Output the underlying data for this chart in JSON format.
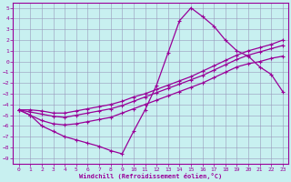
{
  "xlabel": "Windchill (Refroidissement éolien,°C)",
  "bg_color": "#c8f0f0",
  "line_color": "#990099",
  "grid_color": "#9999bb",
  "xlim": [
    -0.5,
    23.5
  ],
  "ylim": [
    -9.5,
    5.5
  ],
  "xticks": [
    0,
    1,
    2,
    3,
    4,
    5,
    6,
    7,
    8,
    9,
    10,
    11,
    12,
    13,
    14,
    15,
    16,
    17,
    18,
    19,
    20,
    21,
    22,
    23
  ],
  "yticks": [
    5,
    4,
    3,
    2,
    1,
    0,
    -1,
    -2,
    -3,
    -4,
    -5,
    -6,
    -7,
    -8,
    -9
  ],
  "line1_x": [
    0,
    1,
    2,
    3,
    4,
    5,
    6,
    7,
    8,
    9,
    10,
    11,
    12,
    13,
    14,
    15,
    16,
    17,
    18,
    19,
    20,
    21,
    22,
    23
  ],
  "line1_y": [
    -4.5,
    -5.0,
    -6.0,
    -6.5,
    -7.0,
    -7.3,
    -7.6,
    -7.9,
    -8.3,
    -8.6,
    -6.5,
    -4.5,
    -2.2,
    0.8,
    3.8,
    5.0,
    4.2,
    3.3,
    2.0,
    1.0,
    0.5,
    -0.5,
    -1.2,
    -2.8
  ],
  "line2_x": [
    0,
    1,
    2,
    3,
    4,
    5,
    6,
    7,
    8,
    9,
    10,
    11,
    12,
    13,
    14,
    15,
    16,
    17,
    18,
    19,
    20,
    21,
    22,
    23
  ],
  "line2_y": [
    -4.5,
    -5.0,
    -5.5,
    -5.8,
    -5.9,
    -5.8,
    -5.6,
    -5.4,
    -5.2,
    -4.8,
    -4.4,
    -4.0,
    -3.6,
    -3.2,
    -2.8,
    -2.4,
    -2.0,
    -1.5,
    -1.0,
    -0.5,
    -0.2,
    0.0,
    0.3,
    0.5
  ],
  "line3_x": [
    0,
    1,
    2,
    3,
    4,
    5,
    6,
    7,
    8,
    9,
    10,
    11,
    12,
    13,
    14,
    15,
    16,
    17,
    18,
    19,
    20,
    21,
    22,
    23
  ],
  "line3_y": [
    -4.5,
    -4.7,
    -4.9,
    -5.1,
    -5.2,
    -5.0,
    -4.8,
    -4.6,
    -4.4,
    -4.1,
    -3.7,
    -3.3,
    -2.9,
    -2.5,
    -2.1,
    -1.7,
    -1.3,
    -0.8,
    -0.3,
    0.2,
    0.6,
    0.9,
    1.2,
    1.5
  ],
  "line4_x": [
    0,
    1,
    2,
    3,
    4,
    5,
    6,
    7,
    8,
    9,
    10,
    11,
    12,
    13,
    14,
    15,
    16,
    17,
    18,
    19,
    20,
    21,
    22,
    23
  ],
  "line4_y": [
    -4.5,
    -4.5,
    -4.6,
    -4.8,
    -4.8,
    -4.6,
    -4.4,
    -4.2,
    -4.0,
    -3.7,
    -3.3,
    -3.0,
    -2.6,
    -2.2,
    -1.8,
    -1.4,
    -0.9,
    -0.4,
    0.1,
    0.6,
    1.0,
    1.3,
    1.6,
    2.0
  ]
}
